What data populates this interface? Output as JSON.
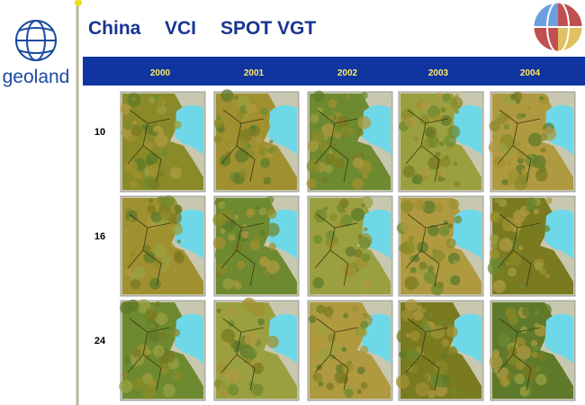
{
  "header": {
    "logo_text": "geoland",
    "title_parts": [
      "China",
      "VCI",
      "SPOT VGT"
    ]
  },
  "grid": {
    "columns": [
      "2000",
      "2001",
      "2002",
      "2003",
      "2004"
    ],
    "rows": [
      "10",
      "16",
      "24"
    ]
  }
}
